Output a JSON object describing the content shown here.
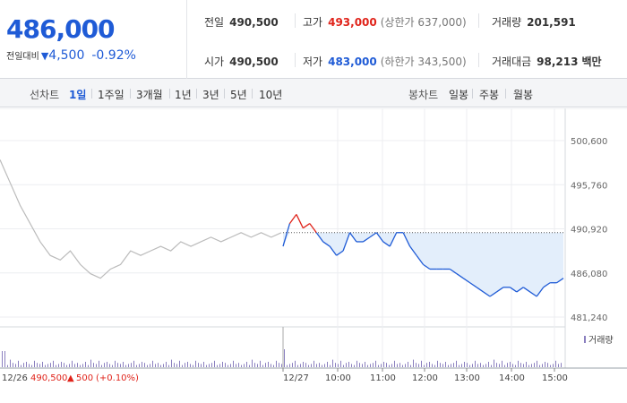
{
  "quote": {
    "price": "486,000",
    "change_label": "전일대비",
    "change_arrow": "▼",
    "change_value": "4,500",
    "change_pct": "-0.92%"
  },
  "stats": {
    "prev_close": {
      "label": "전일",
      "value": "490,500"
    },
    "open": {
      "label": "시가",
      "value": "490,500"
    },
    "high": {
      "label": "고가",
      "value": "493,000",
      "sub": "(상한가 637,000)"
    },
    "low": {
      "label": "저가",
      "value": "483,000",
      "sub": "(하한가 343,500)"
    },
    "volume": {
      "label": "거래량",
      "value": "201,591"
    },
    "amount": {
      "label": "거래대금",
      "value": "98,213",
      "unit": "백만"
    }
  },
  "tabs": {
    "line_chart_label": "선차트",
    "line_periods": [
      "1일",
      "1주일",
      "3개월",
      "1년",
      "3년",
      "5년",
      "10년"
    ],
    "active_period": "1일",
    "candle_label": "봉차트",
    "candle_periods": [
      "일봉",
      "주봉",
      "월봉"
    ]
  },
  "chart_data": {
    "type": "line",
    "y_ticks": [
      "500,600",
      "495,760",
      "490,920",
      "486,080",
      "481,240"
    ],
    "ylim": [
      481240,
      500600
    ],
    "x_ticks": [
      "12/27",
      "10:00",
      "11:00",
      "12:00",
      "13:00",
      "14:00",
      "15:00"
    ],
    "prev_day_info": {
      "date": "12/26",
      "close": "490,500",
      "arrow": "▲",
      "change": "500",
      "pct": "(+0.10%)"
    },
    "volume_legend": "거래량",
    "reference_price": 490500,
    "series": [
      {
        "values_prev_day": [
          498500,
          496000,
          493500,
          491500,
          489500,
          488000,
          487500,
          488500,
          487000,
          486000,
          485500,
          486500,
          487000,
          488500,
          488000,
          488500,
          489000,
          488500,
          489500,
          489000,
          489500,
          490000,
          489500,
          490000,
          490500,
          490000,
          490500,
          490000,
          490500
        ],
        "values_today": [
          489000,
          491500,
          492500,
          491000,
          491500,
          490500,
          489500,
          489000,
          488000,
          488500,
          490500,
          489500,
          489500,
          490000,
          490500,
          489500,
          489000,
          490500,
          490500,
          489000,
          488000,
          487000,
          486500,
          486500,
          486500,
          486500,
          486000,
          485500,
          485000,
          484500,
          484000,
          483500,
          484000,
          484500,
          484500,
          484000,
          484500,
          484000,
          483500,
          484500,
          485000,
          485000,
          485500
        ],
        "colors": {
          "prev_day": "#bbbbbb",
          "above_ref": "#e0241b",
          "below_ref": "#1f5bd6",
          "fill": "#e3eefb"
        }
      }
    ]
  }
}
